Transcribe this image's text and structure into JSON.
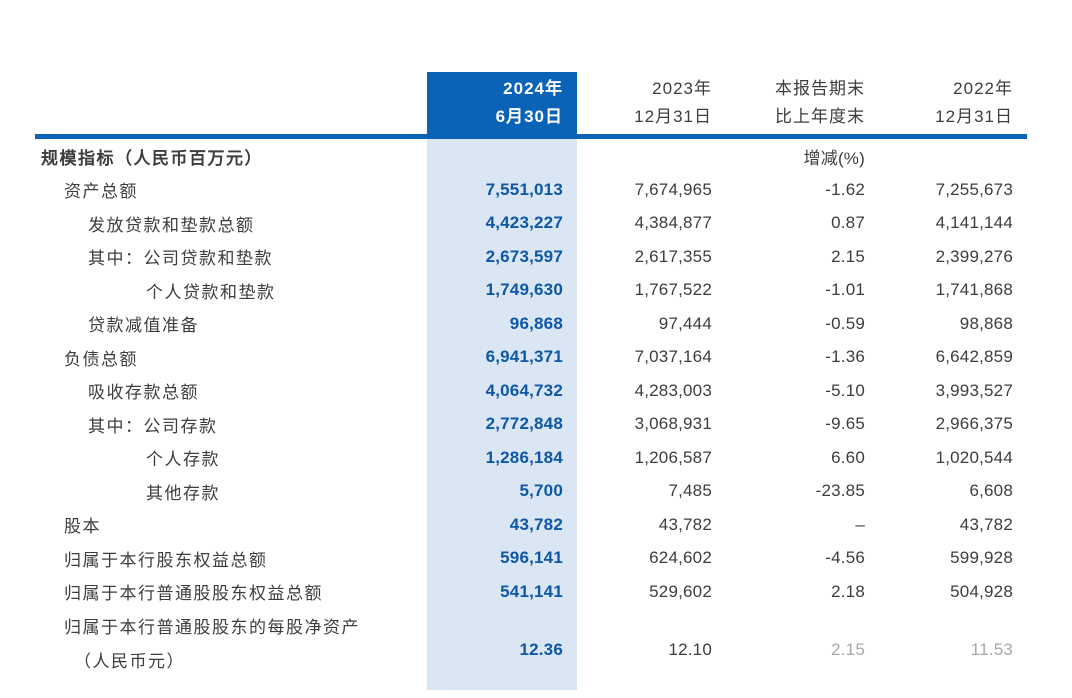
{
  "colors": {
    "header_blue": "#0b63b8",
    "highlight_column_bg": "#dbe6f4",
    "highlight_value_blue": "#0d57a6",
    "body_text": "#3d3d3d"
  },
  "table": {
    "header": {
      "c2024_line1": "2024年",
      "c2024_line2": "6月30日",
      "c2023_line1": "2023年",
      "c2023_line2": "12月31日",
      "cchg_line1": "本报告期末",
      "cchg_line2": "比上年度末",
      "c2022_line1": "2022年",
      "c2022_line2": "12月31日"
    },
    "section_label": "规模指标（人民币百万元）",
    "section_change_note": "增减(%)",
    "rows": [
      {
        "label": "资产总额",
        "indent": 1,
        "v2024": "7,551,013",
        "v2023": "7,674,965",
        "chg": "-1.62",
        "v2022": "7,255,673"
      },
      {
        "label": "发放贷款和垫款总额",
        "indent": 2,
        "v2024": "4,423,227",
        "v2023": "4,384,877",
        "chg": "0.87",
        "v2022": "4,141,144"
      },
      {
        "label": "其中：公司贷款和垫款",
        "indent": 2,
        "v2024": "2,673,597",
        "v2023": "2,617,355",
        "chg": "2.15",
        "v2022": "2,399,276"
      },
      {
        "label": "个人贷款和垫款",
        "indent": 3,
        "v2024": "1,749,630",
        "v2023": "1,767,522",
        "chg": "-1.01",
        "v2022": "1,741,868"
      },
      {
        "label": "贷款减值准备",
        "indent": 2,
        "v2024": "96,868",
        "v2023": "97,444",
        "chg": "-0.59",
        "v2022": "98,868"
      },
      {
        "label": "负债总额",
        "indent": 1,
        "v2024": "6,941,371",
        "v2023": "7,037,164",
        "chg": "-1.36",
        "v2022": "6,642,859"
      },
      {
        "label": "吸收存款总额",
        "indent": 2,
        "v2024": "4,064,732",
        "v2023": "4,283,003",
        "chg": "-5.10",
        "v2022": "3,993,527"
      },
      {
        "label": "其中：公司存款",
        "indent": 2,
        "v2024": "2,772,848",
        "v2023": "3,068,931",
        "chg": "-9.65",
        "v2022": "2,966,375"
      },
      {
        "label": "个人存款",
        "indent": 3,
        "v2024": "1,286,184",
        "v2023": "1,206,587",
        "chg": "6.60",
        "v2022": "1,020,544"
      },
      {
        "label": "其他存款",
        "indent": 3,
        "v2024": "5,700",
        "v2023": "7,485",
        "chg": "-23.85",
        "v2022": "6,608"
      },
      {
        "label": "股本",
        "indent": 1,
        "v2024": "43,782",
        "v2023": "43,782",
        "chg": "–",
        "v2022": "43,782"
      },
      {
        "label": "归属于本行股东权益总额",
        "indent": 1,
        "v2024": "596,141",
        "v2023": "624,602",
        "chg": "-4.56",
        "v2022": "599,928"
      },
      {
        "label": "归属于本行普通股股东权益总额",
        "indent": 1,
        "v2024": "541,141",
        "v2023": "529,602",
        "chg": "2.18",
        "v2022": "504,928"
      },
      {
        "label": "归属于本行普通股股东的每股净资产",
        "label2": "（人民币元）",
        "indent": 1,
        "v2024": "12.36",
        "v2023": "12.10",
        "chg": "2.15",
        "v2022": "11.53",
        "faded": [
          "chg",
          "v2022"
        ]
      }
    ]
  }
}
